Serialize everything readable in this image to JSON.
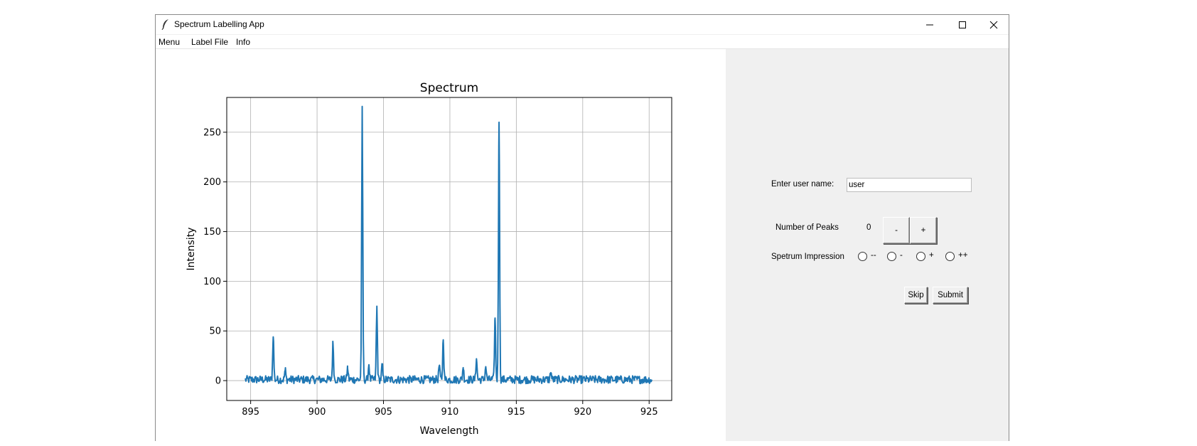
{
  "window": {
    "title": "Spectrum Labelling App",
    "icons": {
      "app": "feather-icon",
      "minimize": "minimize-icon",
      "maximize": "maximize-icon",
      "close": "close-icon"
    }
  },
  "menubar": {
    "items": [
      "Menu",
      "Label File",
      "Info"
    ]
  },
  "chart_data": {
    "type": "line",
    "title": "Spectrum",
    "xlabel": "Wavelength",
    "ylabel": "Intensity",
    "xlim": [
      893.2,
      926.7
    ],
    "ylim": [
      -20,
      285
    ],
    "xticks": [
      "895",
      "900",
      "905",
      "910",
      "915",
      "920",
      "925"
    ],
    "yticks": [
      "0",
      "50",
      "100",
      "150",
      "200",
      "250"
    ],
    "grid": true,
    "line_color": "#1f77b4",
    "x_range": [
      894.6,
      925.2
    ],
    "baseline_noise": "approximately -3 to 8 around 0",
    "peaks": [
      {
        "x": 896.7,
        "y": 44
      },
      {
        "x": 897.6,
        "y": 10
      },
      {
        "x": 901.2,
        "y": 37
      },
      {
        "x": 902.3,
        "y": 12
      },
      {
        "x": 903.4,
        "y": 272
      },
      {
        "x": 903.9,
        "y": 16
      },
      {
        "x": 904.5,
        "y": 73
      },
      {
        "x": 904.9,
        "y": 15
      },
      {
        "x": 909.2,
        "y": 15
      },
      {
        "x": 909.5,
        "y": 41
      },
      {
        "x": 911.0,
        "y": 13
      },
      {
        "x": 912.0,
        "y": 22
      },
      {
        "x": 912.7,
        "y": 14
      },
      {
        "x": 913.4,
        "y": 63
      },
      {
        "x": 913.7,
        "y": 260
      },
      {
        "x": 917.6,
        "y": 8
      }
    ]
  },
  "form": {
    "username_label": "Enter user name:",
    "username_value": "user",
    "peaks_label": "Number of Peaks",
    "peaks_value": "0",
    "minus_label": "-",
    "plus_label": "+",
    "impression_label": "Spetrum Impression",
    "impression_options": [
      "--",
      "-",
      "+",
      "++"
    ],
    "skip_label": "Skip",
    "submit_label": "Submit"
  }
}
